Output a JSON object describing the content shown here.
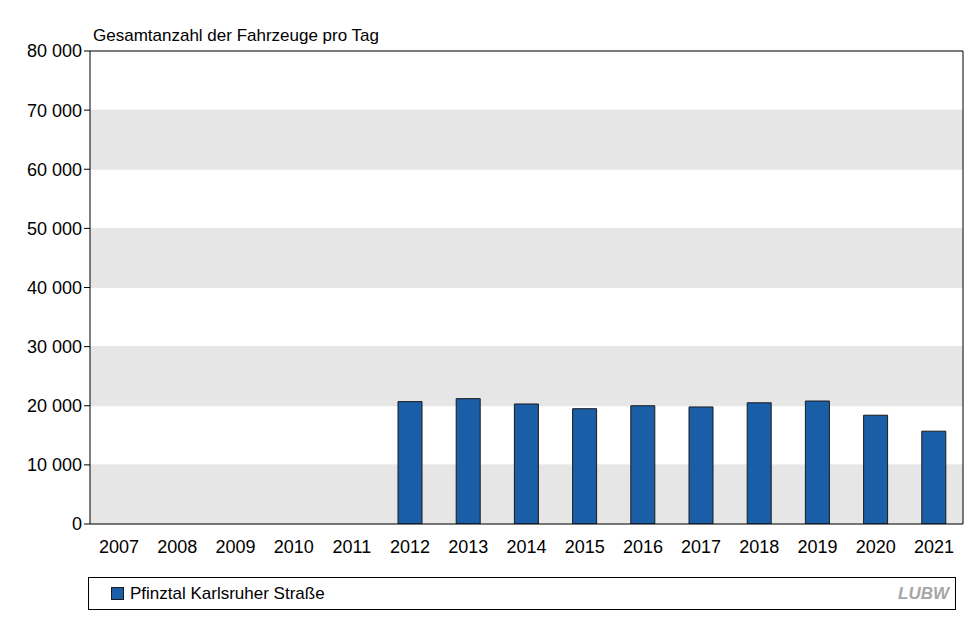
{
  "chart_data": {
    "type": "bar",
    "title": "Gesamtanzahl der Fahrzeuge pro Tag",
    "categories": [
      "2007",
      "2008",
      "2009",
      "2010",
      "2011",
      "2012",
      "2013",
      "2014",
      "2015",
      "2016",
      "2017",
      "2018",
      "2019",
      "2020",
      "2021"
    ],
    "series": [
      {
        "name": "Pfinztal Karlsruher Straße",
        "color": "#1a5ea8",
        "values": [
          null,
          null,
          null,
          null,
          null,
          20700,
          21200,
          20300,
          19500,
          20000,
          19800,
          20500,
          20800,
          18400,
          15700
        ]
      }
    ],
    "ylim": [
      0,
      80000
    ],
    "yticks": [
      0,
      {
        "value": 10000,
        "label": "10 000"
      },
      {
        "value": 20000,
        "label": "20 000"
      },
      {
        "value": 30000,
        "label": "30 000"
      },
      {
        "value": 40000,
        "label": "40 000"
      },
      {
        "value": 50000,
        "label": "50 000"
      },
      {
        "value": 60000,
        "label": "60 000"
      },
      {
        "value": 70000,
        "label": "70 000"
      },
      {
        "value": 80000,
        "label": "80 000"
      }
    ],
    "grid": true,
    "legend": "bottom",
    "source": "LUBW"
  }
}
